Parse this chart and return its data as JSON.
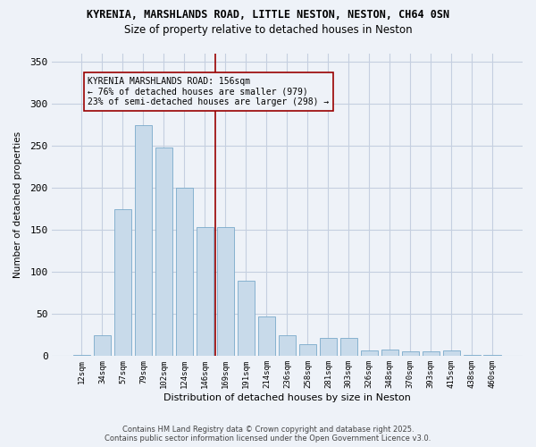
{
  "title1": "KYRENIA, MARSHLANDS ROAD, LITTLE NESTON, NESTON, CH64 0SN",
  "title2": "Size of property relative to detached houses in Neston",
  "xlabel": "Distribution of detached houses by size in Neston",
  "ylabel": "Number of detached properties",
  "bar_labels": [
    "12sqm",
    "34sqm",
    "57sqm",
    "79sqm",
    "102sqm",
    "124sqm",
    "146sqm",
    "169sqm",
    "191sqm",
    "214sqm",
    "236sqm",
    "258sqm",
    "281sqm",
    "303sqm",
    "326sqm",
    "348sqm",
    "370sqm",
    "393sqm",
    "415sqm",
    "438sqm",
    "460sqm"
  ],
  "bar_values": [
    1,
    25,
    175,
    275,
    248,
    200,
    153,
    153,
    90,
    47,
    25,
    14,
    21,
    21,
    6,
    8,
    5,
    5,
    6,
    1,
    1
  ],
  "property_label": "KYRENIA MARSHLANDS ROAD: 156sqm",
  "annotation_line1": "← 76% of detached houses are smaller (979)",
  "annotation_line2": "23% of semi-detached houses are larger (298) →",
  "vline_x": 6.5,
  "bar_color": "#c8daea",
  "bar_edge_color": "#7aaaca",
  "vline_color": "#990000",
  "annotation_box_edge_color": "#990000",
  "bg_color": "#eef2f8",
  "grid_color": "#c5cfe0",
  "footer1": "Contains HM Land Registry data © Crown copyright and database right 2025.",
  "footer2": "Contains public sector information licensed under the Open Government Licence v3.0.",
  "ylim": [
    0,
    360
  ],
  "yticks": [
    0,
    50,
    100,
    150,
    200,
    250,
    300,
    350
  ]
}
